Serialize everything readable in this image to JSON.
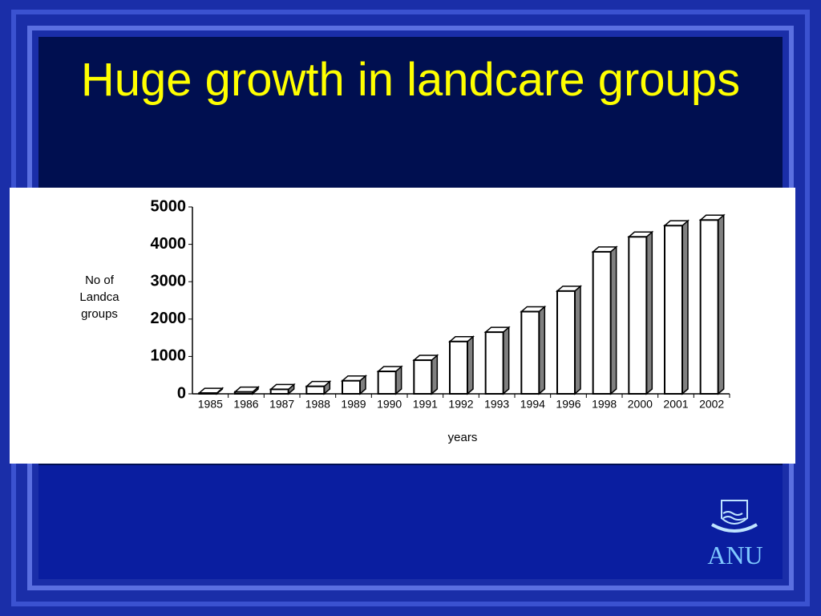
{
  "chart_data": {
    "type": "bar3d",
    "title": "Huge growth in landcare groups",
    "y_label": [
      "No of",
      "Landca",
      "groups"
    ],
    "x_label": "years",
    "categories": [
      "1985",
      "1986",
      "1987",
      "1988",
      "1989",
      "1990",
      "1991",
      "1992",
      "1993",
      "1994",
      "1996",
      "1998",
      "2000",
      "2001",
      "2002"
    ],
    "values": [
      20,
      50,
      120,
      200,
      350,
      600,
      900,
      1400,
      1650,
      2200,
      2750,
      3800,
      4200,
      4500,
      4650
    ],
    "color": "#ffffff",
    "side_color": "#808080",
    "ylim": [
      0,
      5000
    ],
    "yticks": [
      0,
      1000,
      2000,
      3000,
      4000,
      5000
    ]
  },
  "logo": "ANU"
}
